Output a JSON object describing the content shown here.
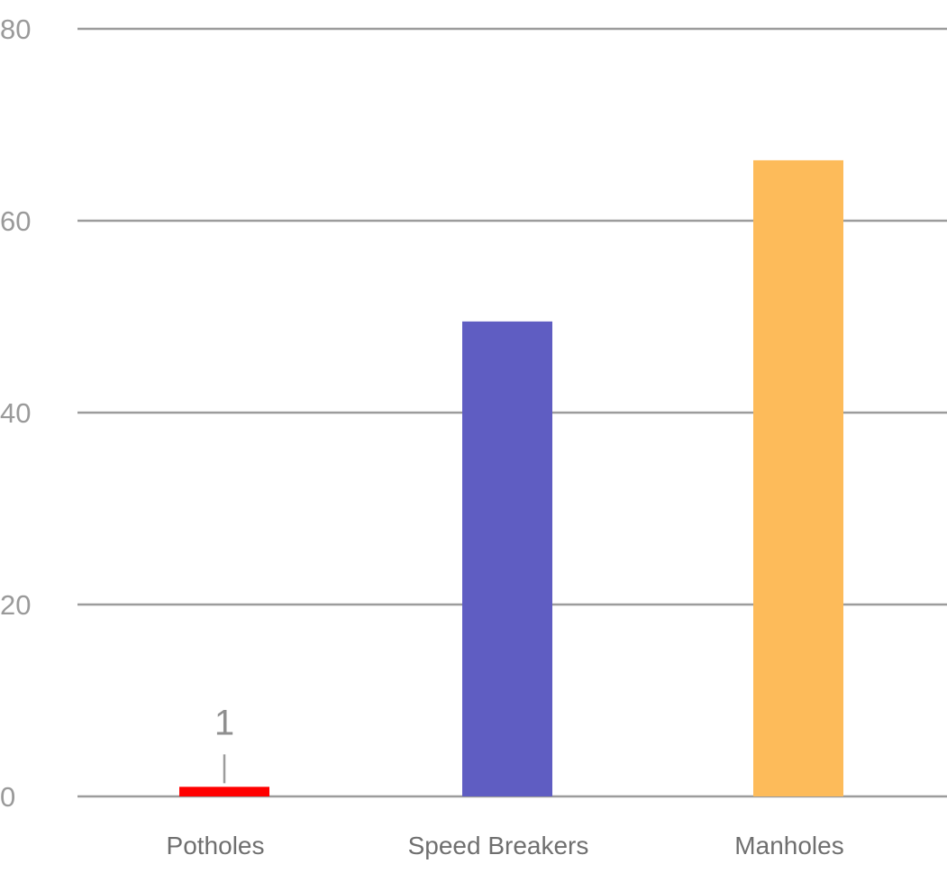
{
  "chart_data": {
    "type": "bar",
    "title": "",
    "xlabel": "",
    "ylabel": "",
    "categories": [
      "Potholes",
      "Speed Breakers",
      "Manholes"
    ],
    "values": [
      1,
      49.5,
      66.3
    ],
    "colors": [
      "#ff0000",
      "#5f5dc2",
      "#fdbb5a"
    ],
    "data_labels": [
      "1",
      "",
      ""
    ],
    "ylim": [
      0,
      80
    ],
    "yticks": [
      0,
      20,
      40,
      60,
      80
    ],
    "ytick_labels": [
      "0",
      "20",
      "40",
      "60",
      "80"
    ],
    "grid": true,
    "legend": "none"
  }
}
